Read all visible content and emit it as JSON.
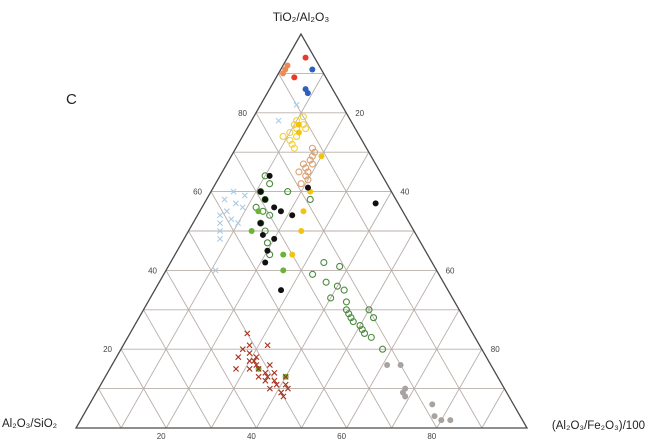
{
  "chart_data": {
    "type": "ternary-scatter",
    "panel_label": "C",
    "apex_top": "TiO₂/Al₂O₃",
    "apex_left": "Al₂O₃/SiO₂",
    "apex_right": "(Al₂O₃/Fe₂O₃)/100",
    "grid_step": 10,
    "tick_values_left": [
      "20",
      "40",
      "60",
      "80"
    ],
    "tick_values_right": [
      "20",
      "40",
      "60",
      "80"
    ],
    "tick_values_bottom": [
      "20",
      "40",
      "60",
      "80"
    ],
    "colors": {
      "grid": "#b9afa9",
      "frame": "#4a4a4a"
    },
    "series": [
      {
        "marker": "filled-circle",
        "color": "#e8392a",
        "points": [
          [
            94,
            4
          ],
          [
            89,
            4
          ]
        ]
      },
      {
        "marker": "filled-circle",
        "color": "#2f5fbf",
        "points": [
          [
            91,
            7
          ],
          [
            86,
            8
          ],
          [
            85,
            9
          ]
        ]
      },
      {
        "marker": "filled-circle",
        "color": "#f08a54",
        "points": [
          [
            92,
            1
          ],
          [
            91,
            1
          ],
          [
            90,
            1
          ]
        ]
      },
      {
        "marker": "open-circle",
        "color": "#f3d03a",
        "points": [
          [
            78,
            10
          ],
          [
            77,
            10
          ],
          [
            76,
            11
          ],
          [
            75,
            10
          ],
          [
            74,
            12
          ],
          [
            73,
            11
          ],
          [
            76,
            13
          ],
          [
            72,
            12
          ],
          [
            79,
            11
          ],
          [
            74,
            9
          ],
          [
            71,
            13
          ],
          [
            77,
            12
          ]
        ]
      },
      {
        "marker": "filled-circle",
        "color": "#f3c312",
        "points": [
          [
            77,
            11
          ],
          [
            75,
            12
          ],
          [
            69,
            20
          ],
          [
            60,
            22
          ],
          [
            55,
            23
          ],
          [
            50,
            25
          ],
          [
            44,
            26
          ]
        ]
      },
      {
        "marker": "open-circle",
        "color": "#d9a173",
        "points": [
          [
            70,
            18
          ],
          [
            69,
            18
          ],
          [
            68,
            18
          ],
          [
            67,
            19
          ],
          [
            66,
            18
          ],
          [
            65,
            19
          ],
          [
            64,
            19
          ],
          [
            63,
            20
          ],
          [
            71,
            17
          ],
          [
            67,
            17
          ],
          [
            65,
            17
          ],
          [
            62,
            19
          ]
        ]
      },
      {
        "marker": "cross",
        "color": "#a9cbe6",
        "points": [
          [
            60,
            5
          ],
          [
            58,
            4
          ],
          [
            57,
            7
          ],
          [
            55,
            6
          ],
          [
            54,
            5
          ],
          [
            53,
            8
          ],
          [
            52,
            6
          ],
          [
            56,
            9
          ],
          [
            50,
            7
          ],
          [
            48,
            8
          ],
          [
            59,
            8
          ],
          [
            52,
            10
          ],
          [
            40,
            11
          ],
          [
            82,
            8
          ],
          [
            78,
            6
          ]
        ]
      },
      {
        "marker": "open-circle",
        "color": "#4a8a3e",
        "points": [
          [
            64,
            10
          ],
          [
            62,
            12
          ],
          [
            60,
            11
          ],
          [
            58,
            13
          ],
          [
            56,
            12
          ],
          [
            55,
            14
          ],
          [
            54,
            16
          ],
          [
            52,
            15
          ],
          [
            50,
            17
          ],
          [
            58,
            23
          ],
          [
            60,
            17
          ],
          [
            47,
            19
          ],
          [
            44,
            21
          ],
          [
            42,
            34
          ],
          [
            41,
            38
          ],
          [
            39,
            33
          ],
          [
            37,
            37
          ],
          [
            36,
            40
          ],
          [
            35,
            42
          ],
          [
            33,
            40
          ],
          [
            32,
            44
          ],
          [
            30,
            45
          ],
          [
            29,
            46
          ],
          [
            28,
            47
          ],
          [
            27,
            48
          ],
          [
            26,
            50
          ],
          [
            25,
            51
          ],
          [
            24,
            52
          ],
          [
            28,
            52
          ],
          [
            30,
            50
          ],
          [
            20,
            58
          ],
          [
            23,
            54
          ]
        ]
      },
      {
        "marker": "filled-circle",
        "color": "#111111",
        "points": [
          [
            64,
            11
          ],
          [
            60,
            11
          ],
          [
            58,
            13
          ],
          [
            56,
            16
          ],
          [
            55,
            18
          ],
          [
            54,
            21
          ],
          [
            52,
            15
          ],
          [
            49,
            17
          ],
          [
            48,
            20
          ],
          [
            45,
            20
          ],
          [
            42,
            21
          ],
          [
            61,
            21
          ],
          [
            35,
            28
          ],
          [
            57,
            38
          ]
        ]
      },
      {
        "marker": "filled-circle",
        "color": "#6ab43a",
        "points": [
          [
            55,
            13
          ],
          [
            50,
            14
          ],
          [
            44,
            24
          ],
          [
            40,
            26
          ],
          [
            15,
            33
          ],
          [
            13,
            40
          ]
        ]
      },
      {
        "marker": "cross",
        "color": "#a8321e",
        "points": [
          [
            24,
            26
          ],
          [
            21,
            28
          ],
          [
            19,
            29
          ],
          [
            18,
            31
          ],
          [
            17,
            31
          ],
          [
            16,
            32
          ],
          [
            15,
            33
          ],
          [
            14,
            35
          ],
          [
            13,
            36
          ],
          [
            12,
            38
          ],
          [
            11,
            39
          ],
          [
            10,
            42
          ],
          [
            17,
            30
          ],
          [
            15,
            31
          ],
          [
            13,
            34
          ],
          [
            16,
            35
          ],
          [
            12,
            36
          ],
          [
            10,
            38
          ],
          [
            14,
            37
          ],
          [
            18,
            27
          ],
          [
            20,
            27
          ],
          [
            9,
            41
          ],
          [
            11,
            41
          ],
          [
            15,
            28
          ],
          [
            13,
            40
          ],
          [
            21,
            32
          ],
          [
            8,
            42
          ]
        ]
      },
      {
        "marker": "filled-circle",
        "color": "#a9a3a0",
        "points": [
          [
            16,
            61
          ],
          [
            16,
            64
          ],
          [
            10,
            68
          ],
          [
            9,
            68
          ],
          [
            8,
            69
          ],
          [
            6,
            76
          ],
          [
            3,
            78
          ],
          [
            2,
            80
          ],
          [
            2,
            82
          ]
        ]
      }
    ]
  }
}
